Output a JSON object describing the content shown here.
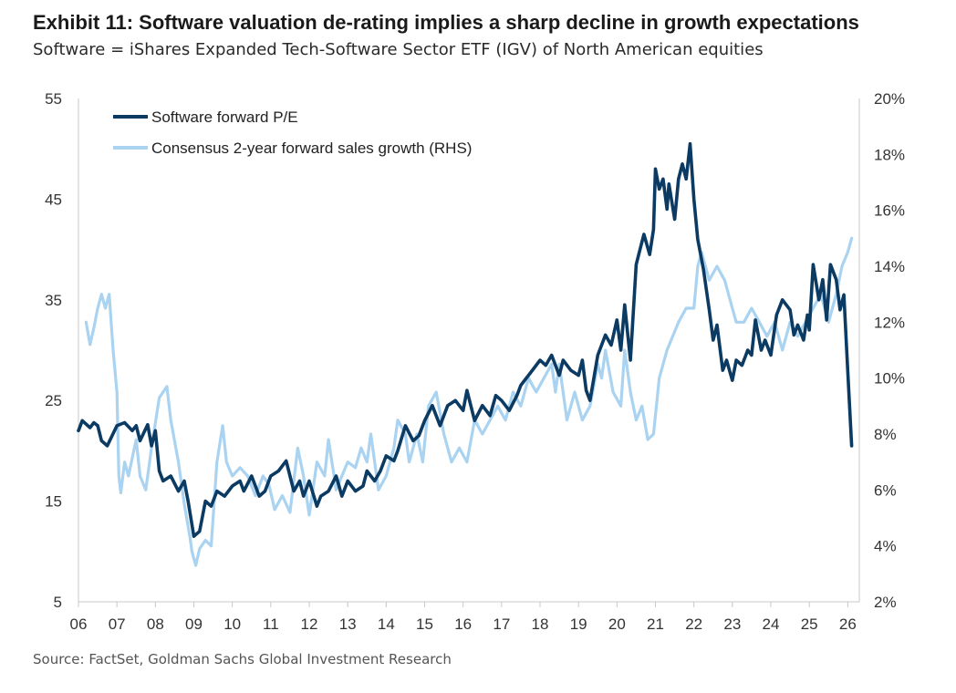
{
  "title": "Exhibit 11: Software valuation de-rating implies a sharp decline in growth expectations",
  "subtitle": "Software = iShares Expanded Tech-Software Sector ETF (IGV) of North American equities",
  "source": "Source: FactSet, Goldman Sachs Global Investment Research",
  "chart_data": {
    "type": "line",
    "title": "",
    "xlabel": "",
    "ylabel_left": "",
    "ylabel_right": "",
    "ylim_left": [
      5,
      55
    ],
    "ylim_right": [
      2,
      20
    ],
    "xlim": [
      2006.0,
      2026.3
    ],
    "left_ticks": [
      "55",
      "45",
      "35",
      "25",
      "15",
      "5"
    ],
    "right_ticks": [
      "20%",
      "18%",
      "16%",
      "14%",
      "12%",
      "10%",
      "8%",
      "6%",
      "4%",
      "2%"
    ],
    "x_ticks": [
      "06",
      "07",
      "08",
      "09",
      "10",
      "11",
      "12",
      "13",
      "14",
      "15",
      "16",
      "17",
      "18",
      "19",
      "20",
      "21",
      "22",
      "23",
      "24",
      "25",
      "26"
    ],
    "legend_position": "top-left",
    "colors": {
      "pe": "#0b3a63",
      "growth": "#a9d3f0"
    },
    "series": [
      {
        "name": "Software forward P/E",
        "axis": "left",
        "x": [
          2006.0,
          2006.1,
          2006.3,
          2006.4,
          2006.5,
          2006.6,
          2006.75,
          2007.0,
          2007.2,
          2007.4,
          2007.5,
          2007.6,
          2007.8,
          2007.9,
          2008.0,
          2008.1,
          2008.2,
          2008.4,
          2008.6,
          2008.75,
          2008.85,
          2009.0,
          2009.15,
          2009.3,
          2009.45,
          2009.6,
          2009.8,
          2010.0,
          2010.2,
          2010.3,
          2010.5,
          2010.7,
          2010.85,
          2011.0,
          2011.2,
          2011.4,
          2011.5,
          2011.6,
          2011.75,
          2011.85,
          2012.0,
          2012.2,
          2012.3,
          2012.5,
          2012.7,
          2012.85,
          2013.0,
          2013.2,
          2013.4,
          2013.5,
          2013.7,
          2013.85,
          2014.0,
          2014.2,
          2014.3,
          2014.5,
          2014.7,
          2014.85,
          2015.0,
          2015.2,
          2015.4,
          2015.6,
          2015.8,
          2016.0,
          2016.1,
          2016.3,
          2016.5,
          2016.7,
          2016.85,
          2017.0,
          2017.2,
          2017.4,
          2017.5,
          2017.6,
          2017.8,
          2018.0,
          2018.15,
          2018.3,
          2018.5,
          2018.6,
          2018.8,
          2019.0,
          2019.1,
          2019.2,
          2019.3,
          2019.5,
          2019.7,
          2019.85,
          2020.0,
          2020.1,
          2020.2,
          2020.35,
          2020.5,
          2020.6,
          2020.7,
          2020.85,
          2020.95,
          2021.0,
          2021.1,
          2021.2,
          2021.3,
          2021.35,
          2021.5,
          2021.6,
          2021.7,
          2021.8,
          2021.9,
          2022.0,
          2022.1,
          2022.25,
          2022.4,
          2022.5,
          2022.6,
          2022.75,
          2022.85,
          2023.0,
          2023.1,
          2023.25,
          2023.4,
          2023.5,
          2023.6,
          2023.75,
          2023.85,
          2024.0,
          2024.15,
          2024.3,
          2024.5,
          2024.6,
          2024.7,
          2024.85,
          2024.95,
          2025.0,
          2025.1,
          2025.25,
          2025.35,
          2025.45,
          2025.55,
          2025.7,
          2025.8,
          2025.9,
          2026.0,
          2026.1
        ],
        "y": [
          22.0,
          23.0,
          22.3,
          22.8,
          22.5,
          21.0,
          20.5,
          22.5,
          22.8,
          22.0,
          22.5,
          21.0,
          22.6,
          20.5,
          22.0,
          18.0,
          17.0,
          17.5,
          16.0,
          17.0,
          15.0,
          11.5,
          12.0,
          15.0,
          14.5,
          16.0,
          15.5,
          16.5,
          17.0,
          16.0,
          17.5,
          15.5,
          16.0,
          17.5,
          18.0,
          19.0,
          17.5,
          16.0,
          17.0,
          15.5,
          17.0,
          14.5,
          15.5,
          16.0,
          17.5,
          15.5,
          17.0,
          16.0,
          16.5,
          18.0,
          17.0,
          18.0,
          19.5,
          19.0,
          20.0,
          22.5,
          21.0,
          21.5,
          23.0,
          24.5,
          22.5,
          24.5,
          25.0,
          24.0,
          26.0,
          23.0,
          24.5,
          23.5,
          25.5,
          25.0,
          24.0,
          25.5,
          26.5,
          27.0,
          28.0,
          29.0,
          28.5,
          29.5,
          27.5,
          29.0,
          28.0,
          27.5,
          29.0,
          26.0,
          25.0,
          29.5,
          31.5,
          30.5,
          33.0,
          30.0,
          34.5,
          29.0,
          38.5,
          40.0,
          41.5,
          39.5,
          42.0,
          48.0,
          46.0,
          47.0,
          44.0,
          46.5,
          43.0,
          47.0,
          48.5,
          47.0,
          50.5,
          45.0,
          41.0,
          38.0,
          34.0,
          31.0,
          32.5,
          28.0,
          29.0,
          27.0,
          29.0,
          28.5,
          30.0,
          29.5,
          33.0,
          30.0,
          31.0,
          29.5,
          33.5,
          35.0,
          34.0,
          31.5,
          32.5,
          31.0,
          33.5,
          32.0,
          38.5,
          35.0,
          37.0,
          33.0,
          38.5,
          37.0,
          34.0,
          35.5,
          28.0,
          20.5
        ]
      },
      {
        "name": "Consensus 2-year forward sales growth (RHS)",
        "axis": "right",
        "x": [
          2006.2,
          2006.3,
          2006.4,
          2006.5,
          2006.6,
          2006.7,
          2006.8,
          2006.9,
          2007.0,
          2007.05,
          2007.1,
          2007.2,
          2007.3,
          2007.5,
          2007.6,
          2007.75,
          2007.9,
          2008.1,
          2008.3,
          2008.4,
          2008.6,
          2008.75,
          2008.9,
          2008.95,
          2009.05,
          2009.15,
          2009.3,
          2009.45,
          2009.6,
          2009.75,
          2009.85,
          2010.0,
          2010.2,
          2010.4,
          2010.6,
          2010.8,
          2010.95,
          2011.1,
          2011.3,
          2011.5,
          2011.7,
          2011.85,
          2012.0,
          2012.2,
          2012.4,
          2012.5,
          2012.7,
          2012.85,
          2013.0,
          2013.2,
          2013.35,
          2013.5,
          2013.6,
          2013.8,
          2014.0,
          2014.2,
          2014.3,
          2014.5,
          2014.6,
          2014.8,
          2014.95,
          2015.1,
          2015.3,
          2015.5,
          2015.7,
          2015.9,
          2016.1,
          2016.3,
          2016.5,
          2016.7,
          2016.9,
          2017.1,
          2017.3,
          2017.5,
          2017.7,
          2017.9,
          2018.1,
          2018.3,
          2018.4,
          2018.5,
          2018.7,
          2018.9,
          2019.1,
          2019.3,
          2019.5,
          2019.6,
          2019.7,
          2019.9,
          2020.1,
          2020.2,
          2020.35,
          2020.5,
          2020.65,
          2020.8,
          2020.95,
          2021.1,
          2021.3,
          2021.45,
          2021.6,
          2021.8,
          2022.0,
          2022.1,
          2022.2,
          2022.4,
          2022.6,
          2022.8,
          2023.0,
          2023.1,
          2023.3,
          2023.5,
          2023.7,
          2023.9,
          2024.1,
          2024.3,
          2024.5,
          2024.7,
          2024.9,
          2025.1,
          2025.3,
          2025.5,
          2025.7,
          2025.85,
          2026.0,
          2026.1
        ],
        "y": [
          12.0,
          11.2,
          11.8,
          12.5,
          13.0,
          12.5,
          13.0,
          11.0,
          9.5,
          6.5,
          5.9,
          7.0,
          6.5,
          7.8,
          6.5,
          6.0,
          7.5,
          9.3,
          9.7,
          8.5,
          7.0,
          5.5,
          4.3,
          3.8,
          3.3,
          3.9,
          4.2,
          4.0,
          7.0,
          8.3,
          7.0,
          6.5,
          6.8,
          6.5,
          5.8,
          6.5,
          6.2,
          5.3,
          5.8,
          5.2,
          7.5,
          6.5,
          5.1,
          7.0,
          6.5,
          7.8,
          6.0,
          6.5,
          7.0,
          6.8,
          7.5,
          7.0,
          8.0,
          6.0,
          6.5,
          7.5,
          8.5,
          8.0,
          7.0,
          8.0,
          7.0,
          9.0,
          9.5,
          8.0,
          7.0,
          7.5,
          7.0,
          8.5,
          8.0,
          8.5,
          9.0,
          8.5,
          9.5,
          9.0,
          10.0,
          9.5,
          10.0,
          10.5,
          9.5,
          10.5,
          8.5,
          9.5,
          8.5,
          9.0,
          10.5,
          10.0,
          11.0,
          9.5,
          9.0,
          11.0,
          9.5,
          8.5,
          9.0,
          7.8,
          8.0,
          10.0,
          11.0,
          11.5,
          12.0,
          12.5,
          12.5,
          14.0,
          14.5,
          13.5,
          14.0,
          13.5,
          12.5,
          12.0,
          12.0,
          12.5,
          12.0,
          11.5,
          12.0,
          11.0,
          12.0,
          11.5,
          12.0,
          12.5,
          13.0,
          12.0,
          13.0,
          14.0,
          14.5,
          15.0
        ]
      }
    ]
  }
}
